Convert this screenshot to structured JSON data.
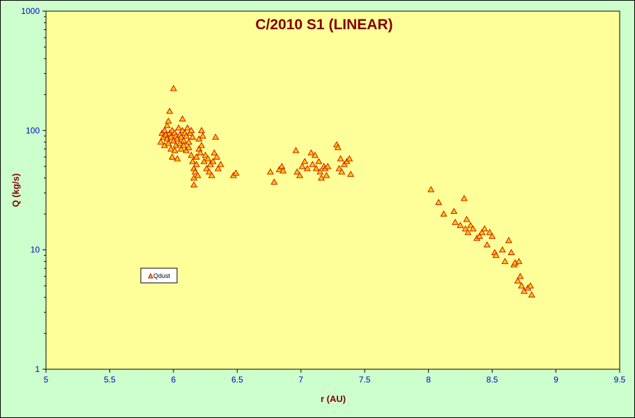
{
  "chart_data": {
    "type": "scatter",
    "title": "C/2010 S1 (LINEAR)",
    "xlabel": "r (AU)",
    "ylabel": "Q (kg/s)",
    "xlim": [
      5,
      9.5
    ],
    "ylim": [
      1,
      1000
    ],
    "y_scale": "log",
    "x_ticks": [
      "5",
      "5.5",
      "6",
      "6.5",
      "7",
      "7.5",
      "8",
      "8.5",
      "9",
      "9.5"
    ],
    "y_ticks": [
      "1",
      "10",
      "100",
      "1000"
    ],
    "grid": false,
    "legend_position": "left-middle",
    "colors": {
      "plot_bg": "#ffff99",
      "page_bg": "#ccffcc",
      "marker_fill": "#ffcc00",
      "marker_edge": "#cc0000",
      "title": "#800000",
      "ticks": "#0000cc"
    },
    "series": [
      {
        "name": "Qdust",
        "points": [
          [
            5.9,
            80
          ],
          [
            5.91,
            95
          ],
          [
            5.92,
            88
          ],
          [
            5.93,
            100
          ],
          [
            5.93,
            75
          ],
          [
            5.94,
            92
          ],
          [
            5.95,
            85
          ],
          [
            5.95,
            110
          ],
          [
            5.96,
            78
          ],
          [
            5.96,
            120
          ],
          [
            5.97,
            145
          ],
          [
            5.97,
            95
          ],
          [
            5.98,
            70
          ],
          [
            5.98,
            88
          ],
          [
            5.99,
            60
          ],
          [
            5.99,
            100
          ],
          [
            6.0,
            82
          ],
          [
            6.0,
            225
          ],
          [
            6.01,
            68
          ],
          [
            6.01,
            95
          ],
          [
            6.02,
            75
          ],
          [
            6.02,
            90
          ],
          [
            6.03,
            58
          ],
          [
            6.03,
            85
          ],
          [
            6.04,
            105
          ],
          [
            6.05,
            78
          ],
          [
            6.05,
            92
          ],
          [
            6.06,
            88
          ],
          [
            6.06,
            70
          ],
          [
            6.07,
            100
          ],
          [
            6.07,
            125
          ],
          [
            6.08,
            82
          ],
          [
            6.08,
            75
          ],
          [
            6.09,
            95
          ],
          [
            6.1,
            68
          ],
          [
            6.1,
            90
          ],
          [
            6.11,
            105
          ],
          [
            6.12,
            80
          ],
          [
            6.12,
            72
          ],
          [
            6.13,
            95
          ],
          [
            6.14,
            100
          ],
          [
            6.14,
            62
          ],
          [
            6.15,
            55
          ],
          [
            6.15,
            88
          ],
          [
            6.16,
            48
          ],
          [
            6.16,
            40
          ],
          [
            6.16,
            35
          ],
          [
            6.17,
            45
          ],
          [
            6.18,
            52
          ],
          [
            6.18,
            60
          ],
          [
            6.19,
            42
          ],
          [
            6.2,
            70
          ],
          [
            6.2,
            85
          ],
          [
            6.21,
            65
          ],
          [
            6.22,
            100
          ],
          [
            6.22,
            75
          ],
          [
            6.23,
            90
          ],
          [
            6.24,
            55
          ],
          [
            6.25,
            62
          ],
          [
            6.26,
            48
          ],
          [
            6.27,
            58
          ],
          [
            6.28,
            45
          ],
          [
            6.29,
            52
          ],
          [
            6.3,
            42
          ],
          [
            6.31,
            55
          ],
          [
            6.32,
            65
          ],
          [
            6.33,
            88
          ],
          [
            6.34,
            60
          ],
          [
            6.35,
            48
          ],
          [
            6.37,
            52
          ],
          [
            6.47,
            42
          ],
          [
            6.49,
            44
          ],
          [
            6.76,
            45
          ],
          [
            6.79,
            37
          ],
          [
            6.83,
            47
          ],
          [
            6.85,
            50
          ],
          [
            6.86,
            46
          ],
          [
            6.96,
            68
          ],
          [
            6.97,
            45
          ],
          [
            6.99,
            42
          ],
          [
            7.01,
            50
          ],
          [
            7.03,
            55
          ],
          [
            7.05,
            48
          ],
          [
            7.08,
            65
          ],
          [
            7.09,
            52
          ],
          [
            7.11,
            62
          ],
          [
            7.12,
            48
          ],
          [
            7.14,
            55
          ],
          [
            7.15,
            45
          ],
          [
            7.16,
            40
          ],
          [
            7.18,
            50
          ],
          [
            7.19,
            48
          ],
          [
            7.2,
            42
          ],
          [
            7.21,
            50
          ],
          [
            7.28,
            76
          ],
          [
            7.29,
            72
          ],
          [
            7.3,
            48
          ],
          [
            7.31,
            58
          ],
          [
            7.32,
            45
          ],
          [
            7.34,
            52
          ],
          [
            7.36,
            55
          ],
          [
            7.38,
            58
          ],
          [
            7.39,
            43
          ],
          [
            8.02,
            32
          ],
          [
            8.08,
            25
          ],
          [
            8.12,
            20
          ],
          [
            8.2,
            21
          ],
          [
            8.21,
            17
          ],
          [
            8.25,
            16
          ],
          [
            8.28,
            27
          ],
          [
            8.29,
            15
          ],
          [
            8.3,
            18
          ],
          [
            8.31,
            14
          ],
          [
            8.33,
            16
          ],
          [
            8.35,
            15
          ],
          [
            8.38,
            12.5
          ],
          [
            8.4,
            13
          ],
          [
            8.42,
            14
          ],
          [
            8.44,
            15
          ],
          [
            8.46,
            11
          ],
          [
            8.48,
            14
          ],
          [
            8.5,
            13
          ],
          [
            8.52,
            9.5
          ],
          [
            8.53,
            9
          ],
          [
            8.58,
            10
          ],
          [
            8.6,
            8
          ],
          [
            8.63,
            12
          ],
          [
            8.65,
            9.5
          ],
          [
            8.67,
            7.5
          ],
          [
            8.68,
            7.8
          ],
          [
            8.7,
            5.5
          ],
          [
            8.71,
            8
          ],
          [
            8.72,
            6
          ],
          [
            8.73,
            5
          ],
          [
            8.75,
            4.5
          ],
          [
            8.78,
            4.8
          ],
          [
            8.8,
            5
          ],
          [
            8.81,
            4.2
          ]
        ]
      }
    ]
  }
}
